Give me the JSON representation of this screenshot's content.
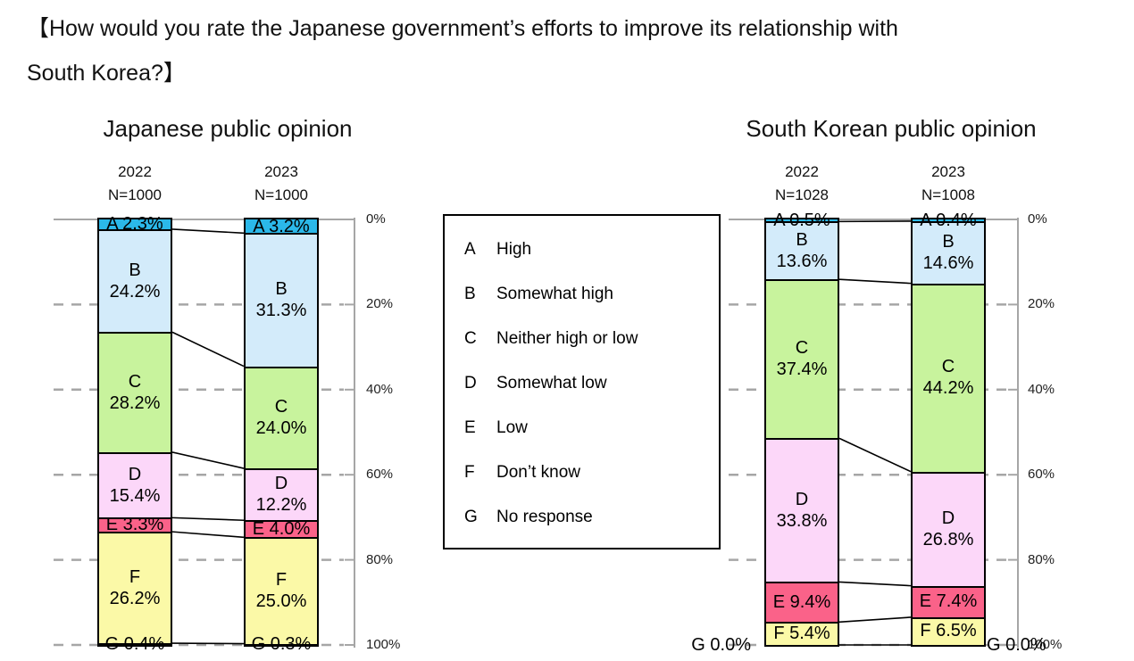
{
  "title": {
    "line1": "【How would you rate the Japanese government’s efforts to improve its relationship with",
    "line2": "South Korea?】"
  },
  "legend": {
    "items": [
      {
        "code": "A",
        "label": "High"
      },
      {
        "code": "B",
        "label": "Somewhat high"
      },
      {
        "code": "C",
        "label": "Neither high or low"
      },
      {
        "code": "D",
        "label": "Somewhat low"
      },
      {
        "code": "E",
        "label": "Low"
      },
      {
        "code": "F",
        "label": "Don’t know"
      },
      {
        "code": "G",
        "label": "No response"
      }
    ]
  },
  "colors": {
    "A": "#2BB8E9",
    "B": "#D3EBFA",
    "C": "#C8F39D",
    "D": "#FCD7F9",
    "E": "#FA6289",
    "F": "#FBF9A7",
    "G": "#FFFFFF",
    "grid": "#A6A6A6",
    "axis": "#A6A6A6",
    "border": "#000000"
  },
  "chart_data": [
    {
      "type": "bar",
      "stacked": true,
      "title": "Japanese public opinion",
      "categories": [
        "A",
        "B",
        "C",
        "D",
        "E",
        "F",
        "G"
      ],
      "series": [
        {
          "name": "2022",
          "n_label": "N=1000",
          "values": [
            2.3,
            24.2,
            28.2,
            15.4,
            3.3,
            26.2,
            0.4
          ]
        },
        {
          "name": "2023",
          "n_label": "N=1000",
          "values": [
            3.2,
            31.3,
            24.0,
            12.2,
            4.0,
            25.0,
            0.3
          ]
        }
      ],
      "ylabel": "",
      "ylim": [
        0,
        100
      ],
      "y_ticks": [
        "0%",
        "20%",
        "40%",
        "60%",
        "80%",
        "100%"
      ],
      "grid": "dashed horizontal, axis on right, 0% at top"
    },
    {
      "type": "bar",
      "stacked": true,
      "title": "South Korean public opinion",
      "categories": [
        "A",
        "B",
        "C",
        "D",
        "E",
        "F",
        "G"
      ],
      "series": [
        {
          "name": "2022",
          "n_label": "N=1028",
          "values": [
            0.5,
            13.6,
            37.4,
            33.8,
            9.4,
            5.4,
            0.0
          ]
        },
        {
          "name": "2023",
          "n_label": "N=1008",
          "values": [
            0.4,
            14.6,
            44.2,
            26.8,
            7.4,
            6.5,
            0.0
          ]
        }
      ],
      "ylabel": "",
      "ylim": [
        0,
        100
      ],
      "y_ticks": [
        "0%",
        "20%",
        "40%",
        "60%",
        "80%",
        "100%"
      ],
      "grid": "dashed horizontal, axis on right, 0% at top"
    }
  ]
}
